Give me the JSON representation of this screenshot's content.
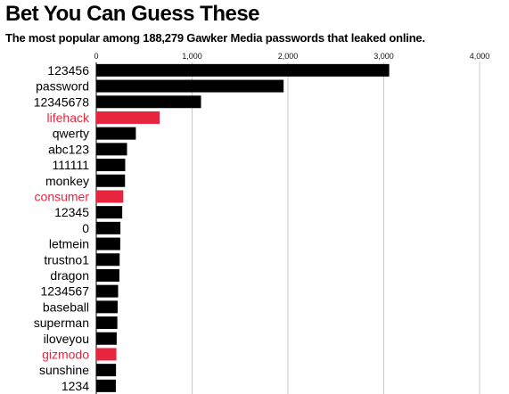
{
  "title": "Bet You Can Guess These",
  "subtitle": "The most popular among 188,279 Gawker Media passwords that leaked online.",
  "colors": {
    "bar_default": "#000000",
    "bar_highlight": "#e8253f",
    "label_default": "#000000",
    "label_highlight": "#e8253f",
    "grid": "#c8c8c8"
  },
  "chart_data": {
    "type": "bar",
    "orientation": "horizontal",
    "title": "Bet You Can Guess These",
    "subtitle": "The most popular among 188,279 Gawker Media passwords that leaked online.",
    "xlim": [
      0,
      4000
    ],
    "ticks": [
      0,
      1000,
      2000,
      3000,
      4000
    ],
    "tick_labels": [
      "0",
      "1,000",
      "2,000",
      "3,000",
      "4,000"
    ],
    "grid": true,
    "categories": [
      "123456",
      "password",
      "12345678",
      "lifehack",
      "qwerty",
      "abc123",
      "111111",
      "monkey",
      "consumer",
      "12345",
      "0",
      "letmein",
      "trustno1",
      "dragon",
      "1234567",
      "baseball",
      "superman",
      "iloveyou",
      "gizmodo",
      "sunshine",
      "1234"
    ],
    "values": [
      3057,
      1955,
      1093,
      661,
      413,
      321,
      302,
      300,
      282,
      271,
      252,
      250,
      244,
      241,
      228,
      223,
      220,
      213,
      210,
      206,
      204
    ],
    "highlighted": [
      "lifehack",
      "consumer",
      "gizmodo"
    ]
  }
}
